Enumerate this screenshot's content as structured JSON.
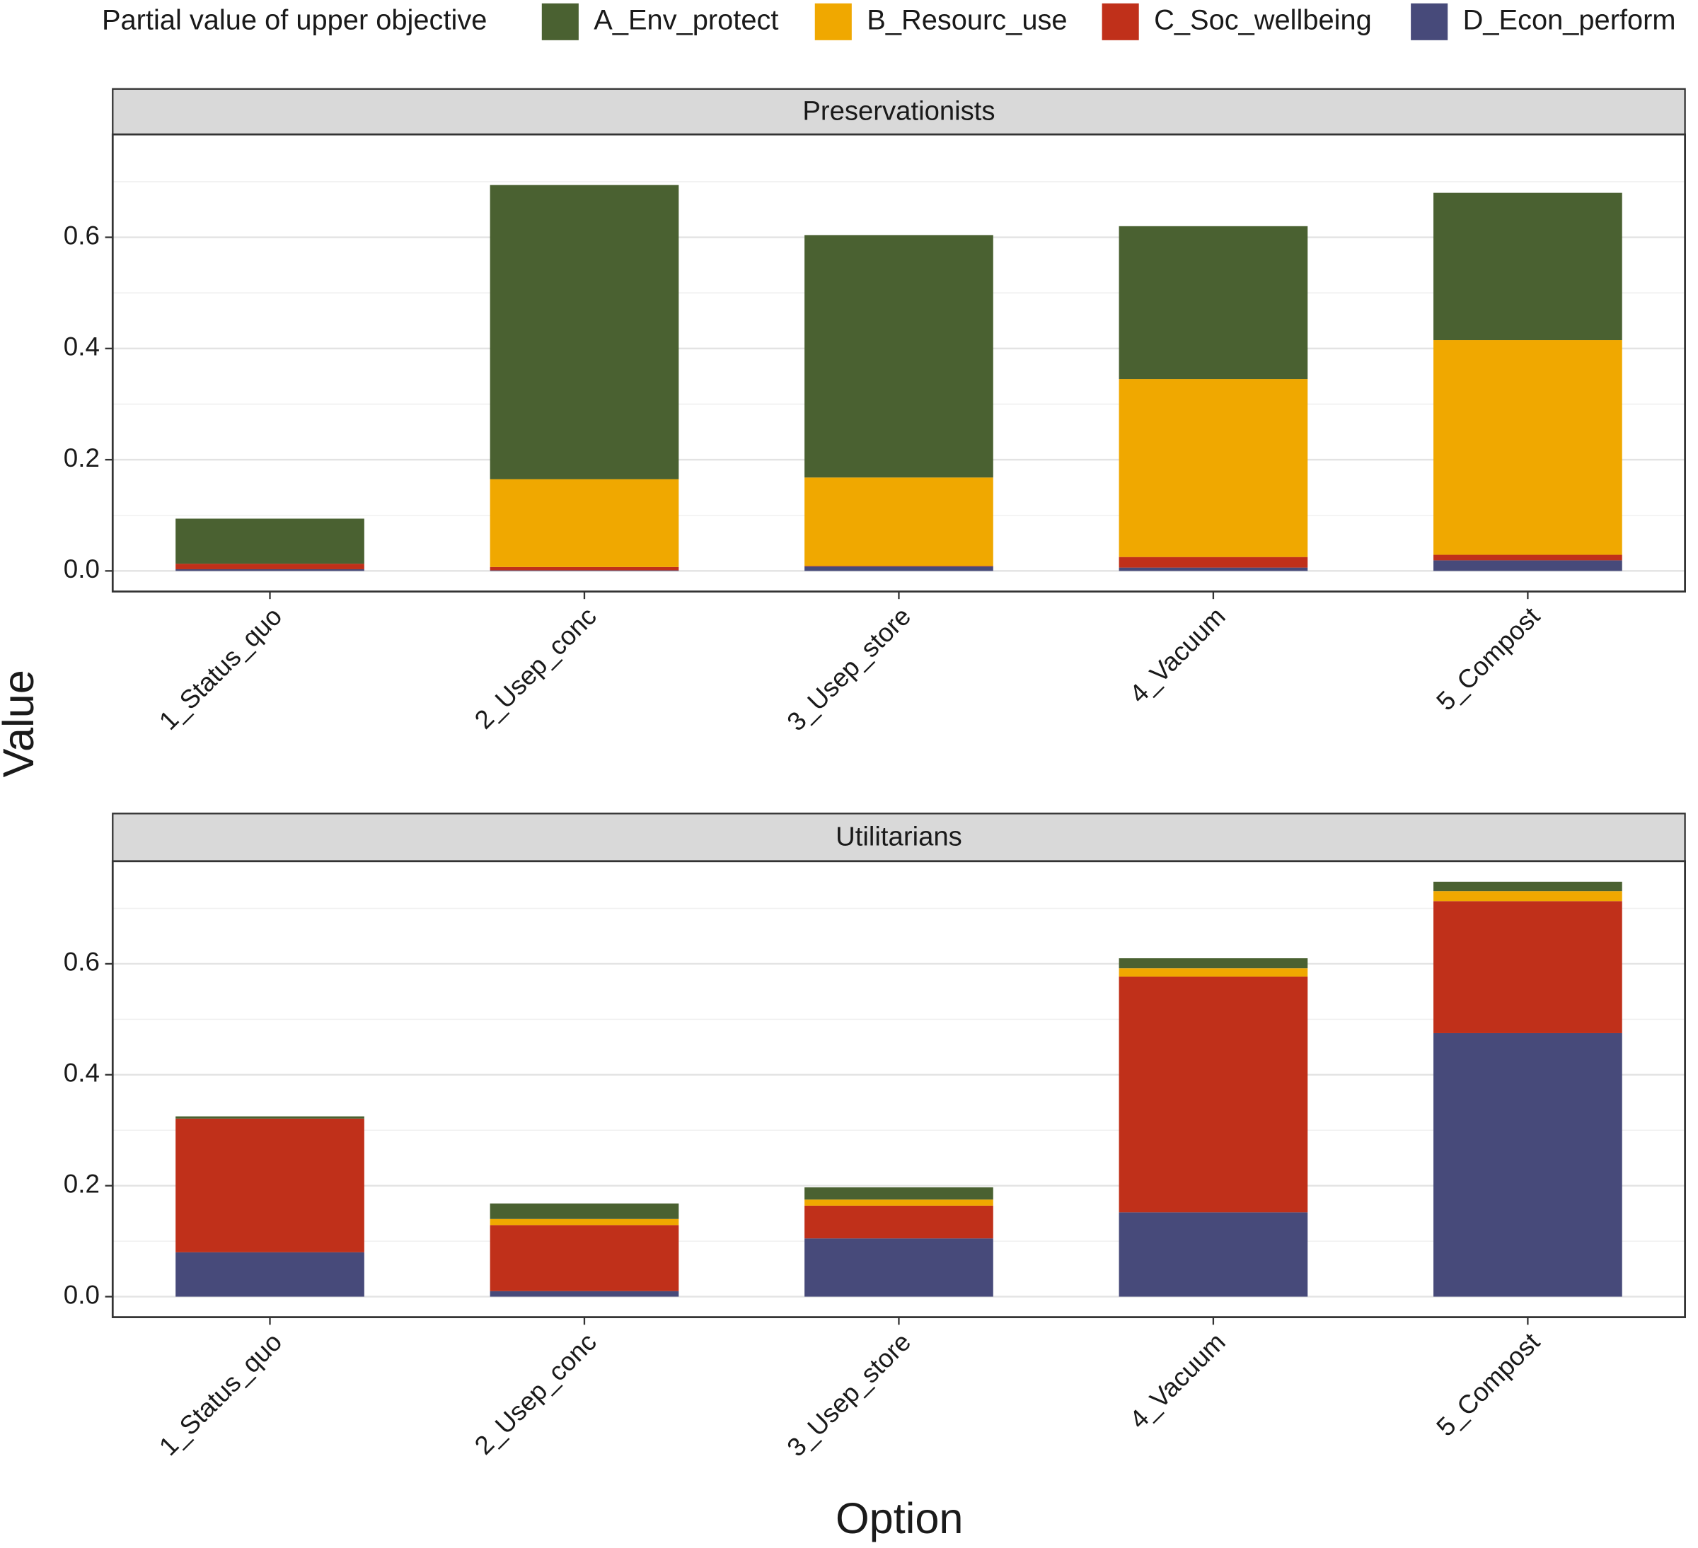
{
  "chart_data": {
    "type": "bar",
    "stacked": true,
    "legend_title": "Partial value of upper objective",
    "legend_position": "top",
    "x_label": "Option",
    "y_label": "Value",
    "grid": true,
    "categories": [
      "1_Status_quo",
      "2_Usep_conc",
      "3_Usep_store",
      "4_Vacuum",
      "5_Compost"
    ],
    "series": [
      {
        "name": "A_Env_protect",
        "color": "#4a6131"
      },
      {
        "name": "B_Resourc_use",
        "color": "#f0a800"
      },
      {
        "name": "C_Soc_wellbeing",
        "color": "#c0301a"
      },
      {
        "name": "D_Econ_perform",
        "color": "#474a7a"
      }
    ],
    "stack_order": [
      3,
      2,
      1,
      0
    ],
    "facets": [
      {
        "title": "Preservationists",
        "ylim": [
          -0.037,
          0.785
        ],
        "yticks": [
          {
            "value": 0,
            "label": "0.0"
          },
          0.2,
          0.4,
          0.6
        ],
        "y_minor_ticks": [
          0.1,
          0.3,
          0.5,
          0.7
        ],
        "series": [
          {
            "values": [
              0.081,
              0.529,
              0.436,
              0.275,
              0.265
            ]
          },
          {
            "values": [
              0,
              0.158,
              0.159,
              0.32,
              0.386
            ]
          },
          {
            "values": [
              0.01,
              0.006,
              0.001,
              0.019,
              0.01
            ]
          },
          {
            "values": [
              0.003,
              0.001,
              0.008,
              0.006,
              0.019
            ]
          }
        ]
      },
      {
        "title": "Utilitarians",
        "ylim": [
          -0.037,
          0.785
        ],
        "yticks": [
          {
            "value": 0,
            "label": "0.0"
          },
          0.2,
          0.4,
          0.6
        ],
        "y_minor_ticks": [
          0.1,
          0.3,
          0.5,
          0.7
        ],
        "series": [
          {
            "values": [
              0.004,
              0.028,
              0.022,
              0.018,
              0.017
            ]
          },
          {
            "values": [
              0,
              0.011,
              0.011,
              0.015,
              0.018
            ]
          },
          {
            "values": [
              0.241,
              0.119,
              0.059,
              0.425,
              0.238
            ]
          },
          {
            "values": [
              0.08,
              0.01,
              0.105,
              0.152,
              0.475
            ]
          }
        ]
      }
    ]
  }
}
